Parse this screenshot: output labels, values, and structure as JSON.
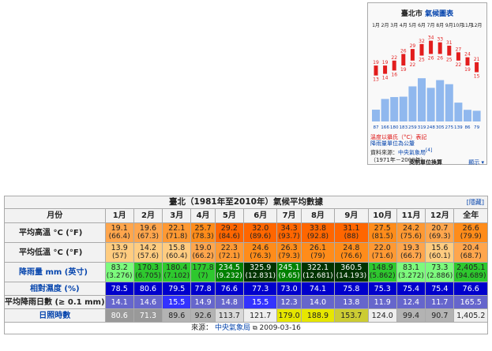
{
  "climate_chart": {
    "title_city": "臺北市",
    "title_link": "氣候圖表",
    "months": [
      "1月",
      "2月",
      "3月",
      "4月",
      "5月",
      "6月",
      "7月",
      "8月",
      "9月",
      "10月",
      "11月",
      "12月"
    ],
    "high": [
      19,
      19,
      22,
      26,
      29,
      32,
      34,
      33,
      31,
      27,
      24,
      21
    ],
    "low": [
      13,
      14,
      16,
      19,
      22,
      25,
      26,
      26,
      25,
      22,
      19,
      15
    ],
    "precip": [
      87,
      166,
      180,
      183,
      259,
      319,
      248,
      305,
      275,
      139,
      86,
      79
    ],
    "colors": {
      "temp": "#e21d1d",
      "precip": "#90b8ee"
    },
    "notes": [
      "溫度以攝氏（°C）表記",
      "降雨量單位為公釐"
    ],
    "source_label": "資料來源：",
    "source_link": "中央氣象局",
    "source_ref": "[4]",
    "source_years": "（1971年－2000年）",
    "switch_units": "英制單位換算",
    "hide": "顯示"
  },
  "table": {
    "caption": "臺北（1981年至2010年）氣候平均數據",
    "hide": "隱藏",
    "header_label": "月份",
    "months": [
      "1月",
      "2月",
      "3月",
      "4月",
      "5月",
      "6月",
      "7月",
      "8月",
      "9月",
      "10月",
      "11月",
      "12月"
    ],
    "annual": "全年",
    "rows": [
      {
        "label": "平均高溫 °C (°F)",
        "values": [
          "19.1",
          "19.6",
          "22.1",
          "25.7",
          "29.2",
          "32.0",
          "34.3",
          "33.8",
          "31.1",
          "27.5",
          "24.2",
          "20.7"
        ],
        "subs": [
          "(66.4)",
          "(67.3)",
          "(71.8)",
          "(78.3)",
          "(84.6)",
          "(89.6)",
          "(93.7)",
          "(92.8)",
          "(88)",
          "(81.5)",
          "(75.6)",
          "(69.3)"
        ],
        "annual": "26.6",
        "annual_sub": "(79.9)"
      },
      {
        "label": "平均低溫 °C (°F)",
        "values": [
          "13.9",
          "14.2",
          "15.8",
          "19.0",
          "22.3",
          "24.6",
          "26.3",
          "26.1",
          "24.8",
          "22.0",
          "19.3",
          "15.6"
        ],
        "subs": [
          "(57)",
          "(57.6)",
          "(60.4)",
          "(66.2)",
          "(72.1)",
          "(76.3)",
          "(79.3)",
          "(79)",
          "(76.6)",
          "(71.6)",
          "(66.7)",
          "(60.1)"
        ],
        "annual": "20.4",
        "annual_sub": "(68.7)"
      },
      {
        "label": "降雨量 mm (英寸)",
        "values": [
          "83.2",
          "170.3",
          "180.4",
          "177.8",
          "234.5",
          "325.9",
          "245.1",
          "322.1",
          "360.5",
          "148.9",
          "83.1",
          "73.3"
        ],
        "subs": [
          "(3.276)",
          "(6.705)",
          "(7.102)",
          "(7)",
          "(9.232)",
          "(12.831)",
          "(9.65)",
          "(12.681)",
          "(14.193)",
          "(5.862)",
          "(3.272)",
          "(2.886)"
        ],
        "annual": "2,405.1",
        "annual_sub": "(94.689)"
      },
      {
        "label": "相對濕度 (%)",
        "values": [
          "78.5",
          "80.6",
          "79.5",
          "77.8",
          "76.6",
          "77.3",
          "73.0",
          "74.1",
          "75.8",
          "75.3",
          "75.4",
          "75.4"
        ],
        "annual": "76.6"
      },
      {
        "label": "平均降雨日數 (≥ 0.1 mm)",
        "values": [
          "14.1",
          "14.6",
          "15.5",
          "14.9",
          "14.8",
          "15.5",
          "12.3",
          "14.0",
          "13.8",
          "11.9",
          "12.4",
          "11.7"
        ],
        "annual": "165.5"
      },
      {
        "label": "日照時數",
        "values": [
          "80.6",
          "71.3",
          "89.6",
          "92.6",
          "113.7",
          "121.7",
          "179.0",
          "188.9",
          "153.7",
          "124.0",
          "99.4",
          "90.7"
        ],
        "annual": "1,405.2"
      }
    ],
    "source_label": "來源：",
    "source_link": "中央氣象局",
    "source_date": "2009-03-16"
  }
}
